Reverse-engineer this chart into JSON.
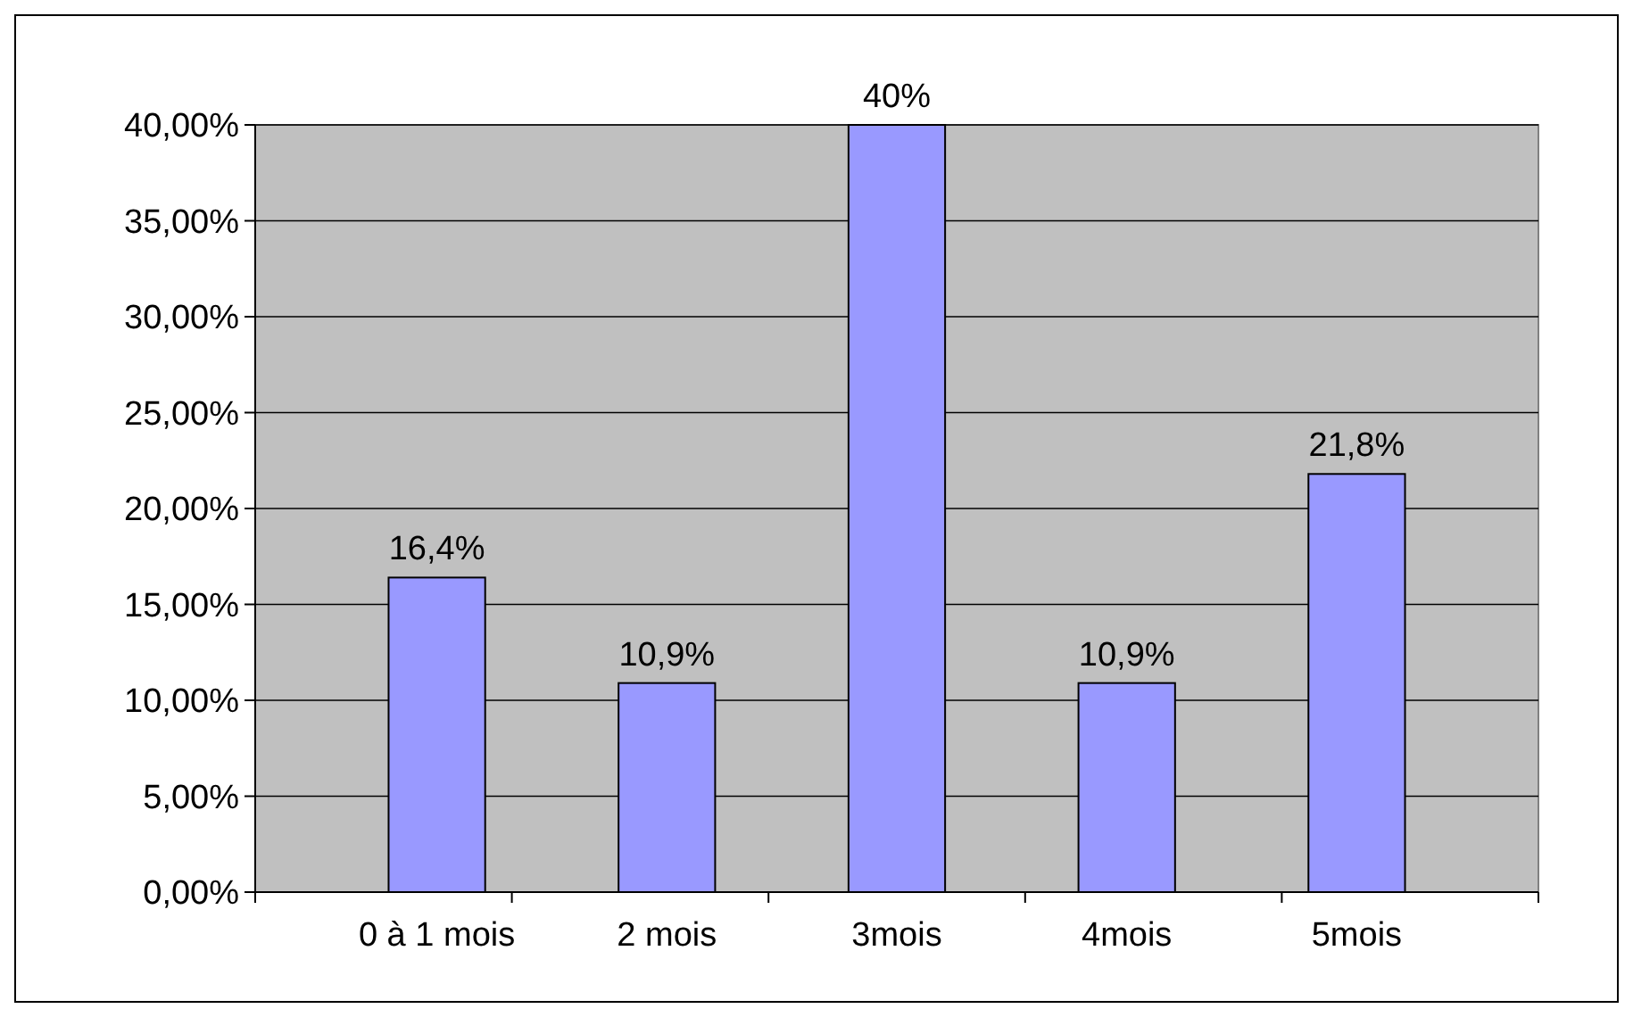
{
  "chart_data": {
    "type": "bar",
    "categories": [
      "0 à 1 mois",
      "2 mois",
      "3mois",
      "4mois",
      "5mois"
    ],
    "values": [
      16.4,
      10.9,
      40,
      10.9,
      21.8
    ],
    "value_labels": [
      "16,4%",
      "10,9%",
      "40%",
      "10,9%",
      "21,8%"
    ],
    "color": "#9999ff",
    "ylim": [
      0,
      40
    ],
    "yticks": [
      {
        "value": 0,
        "label": "0,00%"
      },
      {
        "value": 5,
        "label": "5,00%"
      },
      {
        "value": 10,
        "label": "10,00%"
      },
      {
        "value": 15,
        "label": "15,00%"
      },
      {
        "value": 20,
        "label": "20,00%"
      },
      {
        "value": 25,
        "label": "25,00%"
      },
      {
        "value": 30,
        "label": "30,00%"
      },
      {
        "value": 35,
        "label": "35,00%"
      },
      {
        "value": 40,
        "label": "40,00%"
      }
    ],
    "grid": "y"
  }
}
